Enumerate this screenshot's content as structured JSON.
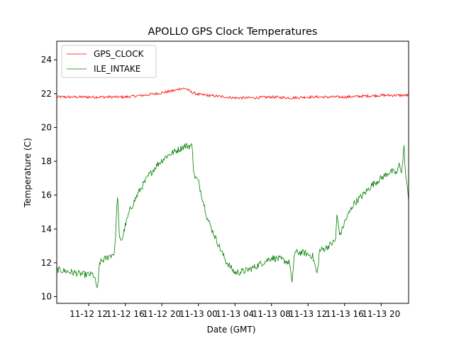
{
  "chart_data": {
    "type": "line",
    "title": "APOLLO GPS Clock Temperatures",
    "xlabel": "Date (GMT)",
    "ylabel": "Temperature (C)",
    "xlim": [
      "11-12 08:30",
      "11-13 23:00"
    ],
    "ylim": [
      9.6,
      25.1
    ],
    "grid": false,
    "legend_position": "top-left",
    "x_ticks": [
      {
        "label": "11-12 12",
        "t": "11-12 12:00"
      },
      {
        "label": "11-12 16",
        "t": "11-12 16:00"
      },
      {
        "label": "11-12 20",
        "t": "11-12 20:00"
      },
      {
        "label": "11-13 00",
        "t": "11-13 00:00"
      },
      {
        "label": "11-13 04",
        "t": "11-13 04:00"
      },
      {
        "label": "11-13 08",
        "t": "11-13 08:00"
      },
      {
        "label": "11-13 12",
        "t": "11-13 12:00"
      },
      {
        "label": "11-13 16",
        "t": "11-13 16:00"
      },
      {
        "label": "11-13 20",
        "t": "11-13 20:00"
      }
    ],
    "y_ticks": [
      10,
      12,
      14,
      16,
      18,
      20,
      22,
      24
    ],
    "series": [
      {
        "name": "GPS_CLOCK",
        "color": "#ff0000",
        "noise": 0.08,
        "points": [
          [
            "11-12 08:30",
            21.8
          ],
          [
            "11-12 10:00",
            21.8
          ],
          [
            "11-12 12:00",
            21.8
          ],
          [
            "11-12 14:00",
            21.8
          ],
          [
            "11-12 16:00",
            21.8
          ],
          [
            "11-12 18:00",
            21.9
          ],
          [
            "11-12 20:00",
            22.05
          ],
          [
            "11-12 21:30",
            22.2
          ],
          [
            "11-12 22:00",
            22.3
          ],
          [
            "11-12 22:40",
            22.3
          ],
          [
            "11-12 23:10",
            22.1
          ],
          [
            "11-13 00:00",
            21.95
          ],
          [
            "11-13 02:00",
            21.85
          ],
          [
            "11-13 04:00",
            21.75
          ],
          [
            "11-13 06:00",
            21.75
          ],
          [
            "11-13 08:00",
            21.8
          ],
          [
            "11-13 10:00",
            21.75
          ],
          [
            "11-13 12:00",
            21.8
          ],
          [
            "11-13 14:00",
            21.8
          ],
          [
            "11-13 16:00",
            21.8
          ],
          [
            "11-13 18:00",
            21.85
          ],
          [
            "11-13 20:00",
            21.9
          ],
          [
            "11-13 23:00",
            21.9
          ]
        ]
      },
      {
        "name": "ILE_INTAKE",
        "color": "#008000",
        "noise": 0.2,
        "points": [
          [
            "11-12 08:30",
            11.6
          ],
          [
            "11-12 09:30",
            11.5
          ],
          [
            "11-12 10:30",
            11.4
          ],
          [
            "11-12 11:30",
            11.3
          ],
          [
            "11-12 12:30",
            11.3
          ],
          [
            "11-12 13:00",
            10.4
          ],
          [
            "11-12 13:10",
            12.0
          ],
          [
            "11-12 14:00",
            12.3
          ],
          [
            "11-12 14:50",
            12.6
          ],
          [
            "11-12 15:10",
            16.2
          ],
          [
            "11-12 15:20",
            13.4
          ],
          [
            "11-12 15:40",
            13.4
          ],
          [
            "11-12 16:00",
            14.2
          ],
          [
            "11-12 16:30",
            15.1
          ],
          [
            "11-12 17:30",
            16.2
          ],
          [
            "11-12 18:30",
            17.1
          ],
          [
            "11-12 19:30",
            17.8
          ],
          [
            "11-12 20:30",
            18.3
          ],
          [
            "11-12 21:30",
            18.6
          ],
          [
            "11-12 22:30",
            18.9
          ],
          [
            "11-12 23:20",
            18.9
          ],
          [
            "11-12 23:30",
            17.2
          ],
          [
            "11-13 00:00",
            16.8
          ],
          [
            "11-13 01:00",
            14.6
          ],
          [
            "11-13 02:00",
            13.3
          ],
          [
            "11-13 03:00",
            12.1
          ],
          [
            "11-13 04:00",
            11.4
          ],
          [
            "11-13 05:00",
            11.5
          ],
          [
            "11-13 06:00",
            11.7
          ],
          [
            "11-13 07:00",
            12.0
          ],
          [
            "11-13 08:00",
            12.3
          ],
          [
            "11-13 09:00",
            12.2
          ],
          [
            "11-13 10:00",
            12.0
          ],
          [
            "11-13 10:15",
            10.6
          ],
          [
            "11-13 10:30",
            12.6
          ],
          [
            "11-13 11:30",
            12.6
          ],
          [
            "11-13 12:30",
            12.4
          ],
          [
            "11-13 13:00",
            11.3
          ],
          [
            "11-13 13:15",
            12.7
          ],
          [
            "11-13 14:00",
            12.9
          ],
          [
            "11-13 15:00",
            13.3
          ],
          [
            "11-13 15:10",
            14.8
          ],
          [
            "11-13 15:30",
            13.6
          ],
          [
            "11-13 16:00",
            14.4
          ],
          [
            "11-13 17:00",
            15.5
          ],
          [
            "11-13 18:00",
            16.0
          ],
          [
            "11-13 19:00",
            16.6
          ],
          [
            "11-13 20:00",
            17.0
          ],
          [
            "11-13 21:00",
            17.4
          ],
          [
            "11-13 21:45",
            17.3
          ],
          [
            "11-13 22:00",
            17.9
          ],
          [
            "11-13 22:15",
            17.3
          ],
          [
            "11-13 22:30",
            18.9
          ],
          [
            "11-13 22:40",
            17.2
          ],
          [
            "11-13 23:00",
            15.8
          ]
        ]
      }
    ]
  }
}
